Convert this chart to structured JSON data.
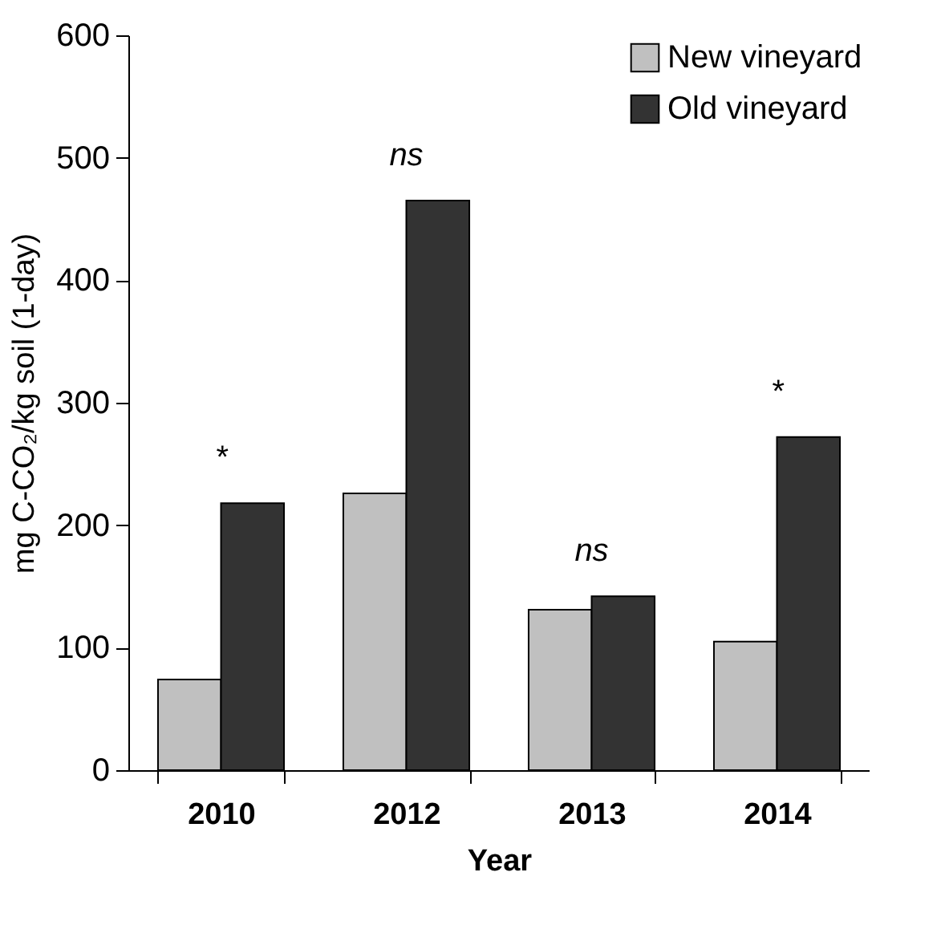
{
  "chart_data": {
    "type": "bar",
    "xlabel": "Year",
    "ylabel": "mg C-CO₂/kg soil (1-day)",
    "categories": [
      "2010",
      "2012",
      "2013",
      "2014"
    ],
    "series": [
      {
        "name": "New vineyard",
        "color": "#c0c0c0",
        "values": [
          74,
          226,
          131,
          105
        ]
      },
      {
        "name": "Old vineyard",
        "color": "#333333",
        "values": [
          218,
          465,
          142,
          272
        ]
      }
    ],
    "ylim": [
      0,
      600
    ],
    "yticks": [
      0,
      100,
      200,
      300,
      400,
      500,
      600
    ],
    "legend": "top right",
    "annotations": [
      "*",
      "ns",
      "ns",
      "*"
    ]
  }
}
